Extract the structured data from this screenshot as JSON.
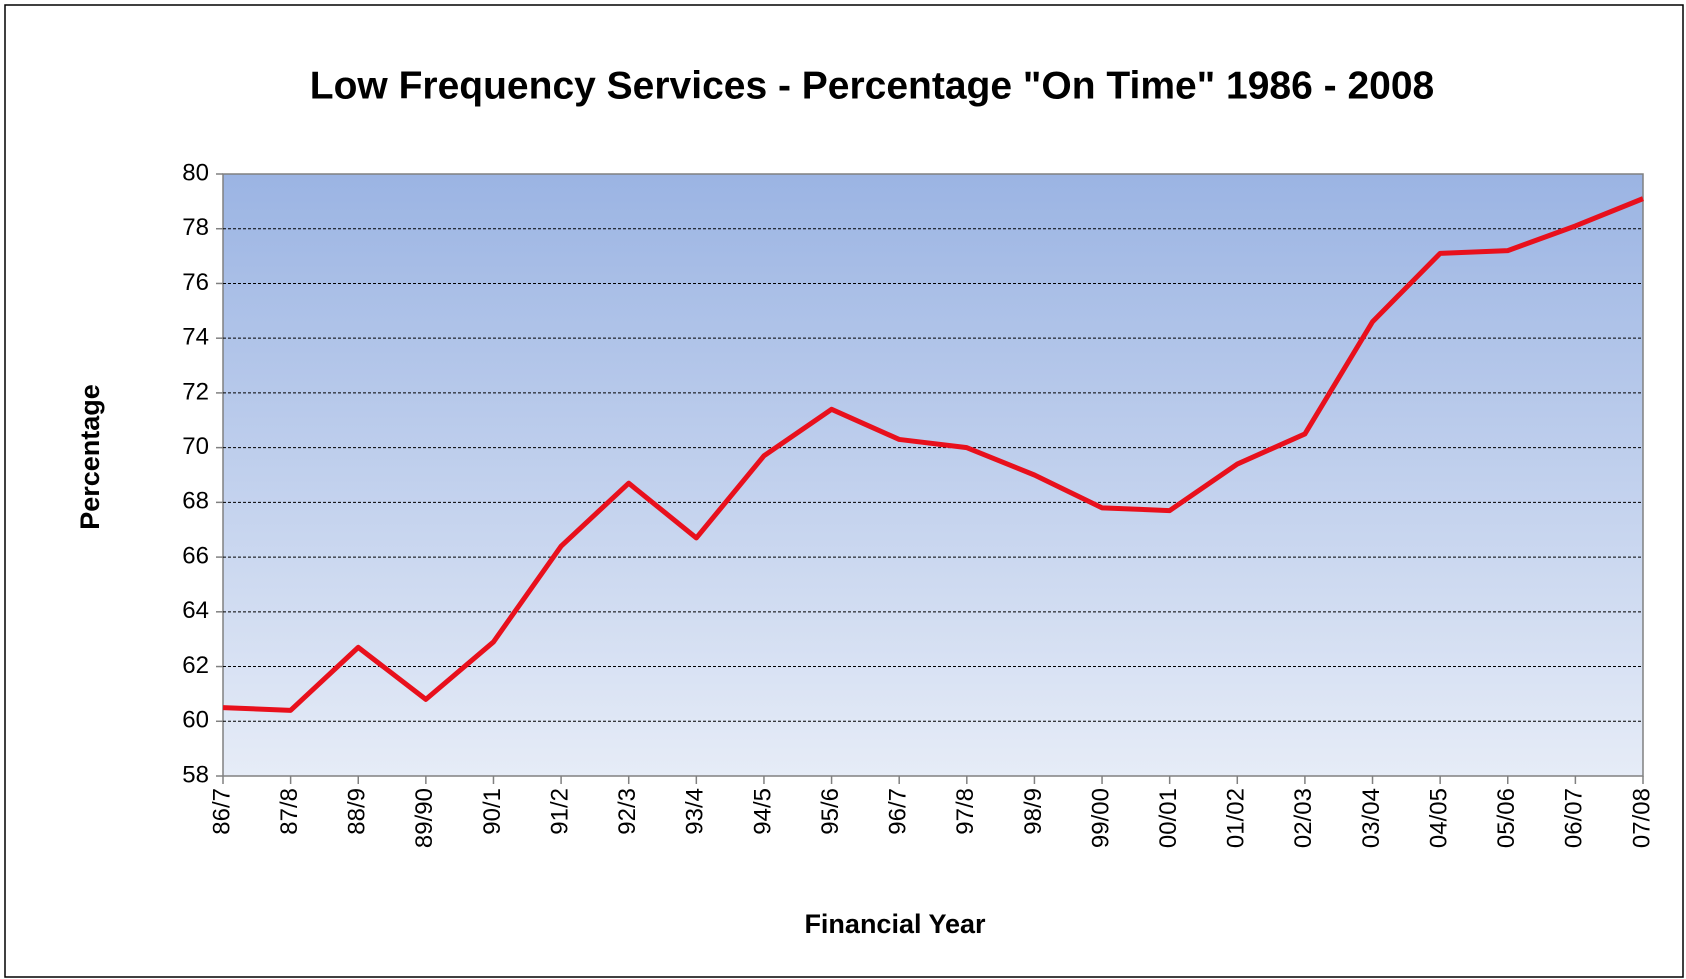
{
  "chart_data": {
    "type": "line",
    "title": "Low Frequency Services - Percentage \"On Time\"  1986 - 2008",
    "x_label": "Financial Year",
    "y_label": "Percentage",
    "categories": [
      "86/7",
      "87/8",
      "88/9",
      "89/90",
      "90/1",
      "91/2",
      "92/3",
      "93/4",
      "94/5",
      "95/6",
      "96/7",
      "97/8",
      "98/9",
      "99/00",
      "00/01",
      "01/02",
      "02/03",
      "03/04",
      "04/05",
      "05/06",
      "06/07",
      "07/08"
    ],
    "series": [
      {
        "name": "Percentage",
        "color": "#e8101c",
        "values": [
          60.5,
          60.4,
          62.7,
          60.8,
          62.9,
          66.4,
          68.7,
          66.7,
          69.7,
          71.4,
          70.3,
          70.0,
          69.0,
          67.8,
          67.7,
          69.4,
          70.5,
          74.6,
          77.1,
          77.2,
          78.1,
          79.1
        ]
      }
    ],
    "ylim": [
      58,
      80
    ],
    "yticks": [
      58,
      60,
      62,
      64,
      66,
      68,
      70,
      72,
      74,
      76,
      78,
      80
    ],
    "grid": true
  }
}
